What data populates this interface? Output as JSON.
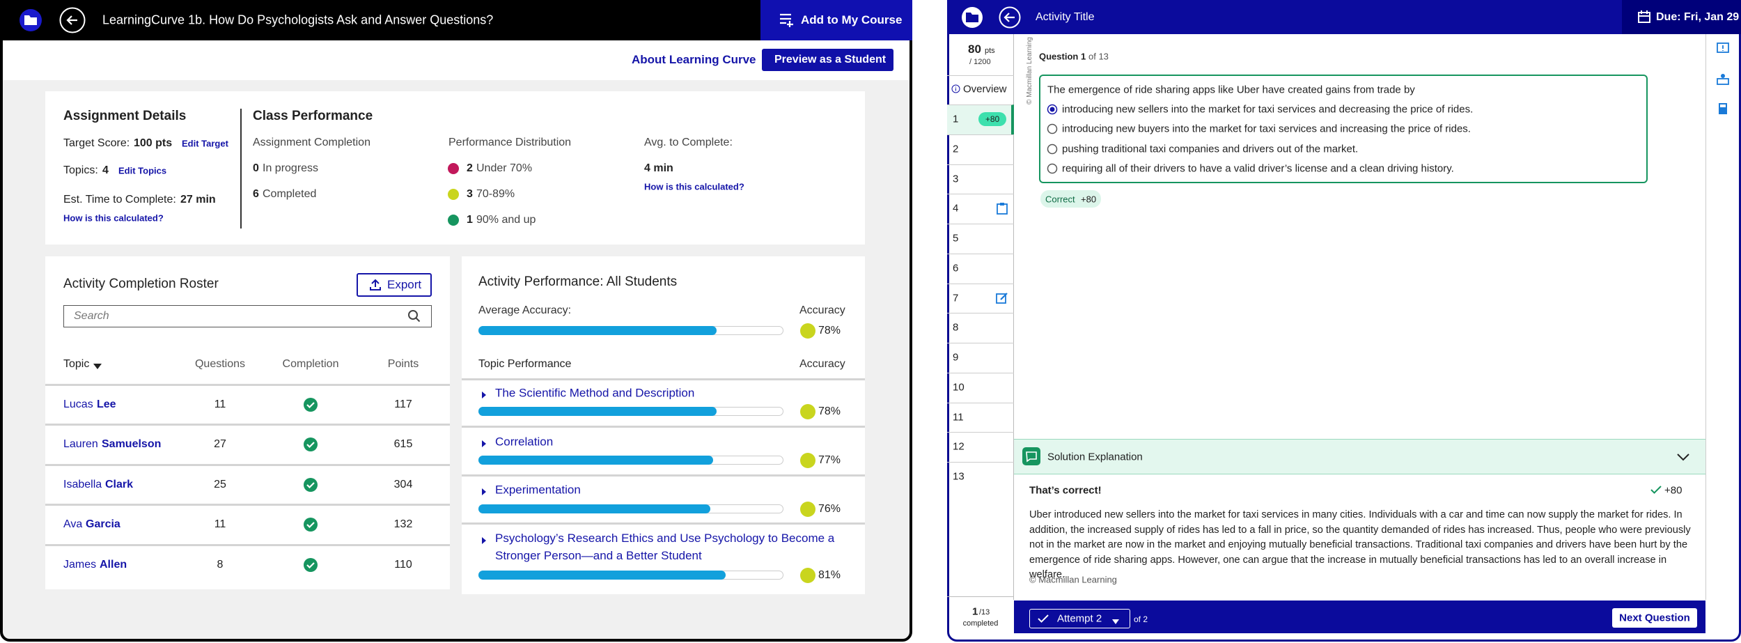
{
  "left": {
    "header": {
      "title": "LearningCurve 1b. How Do Psychologists Ask and Answer Questions?",
      "add_button": "Add to My Course"
    },
    "subnav": {
      "about": "About Learning Curve",
      "preview": "Preview as a Student"
    },
    "assignment_details": {
      "title": "Assignment Details",
      "target_label": "Target Score:",
      "target_value": "100 pts",
      "edit_target": "Edit Target",
      "topics_label": "Topics:",
      "topics_value": 4,
      "edit_topics": "Edit Topics",
      "time_label": "Est. Time to Complete:",
      "time_value": "27 min",
      "how": "How is this calculated?"
    },
    "class_performance": {
      "title": "Class Performance",
      "completion": {
        "title": "Assignment Completion",
        "items": [
          {
            "count": 0,
            "label": "In progress"
          },
          {
            "count": 6,
            "label": "Completed"
          }
        ]
      },
      "distribution": {
        "title": "Performance Distribution",
        "items": [
          {
            "count": 2,
            "label": "Under 70%",
            "color": "#c2185b"
          },
          {
            "count": 3,
            "label": "70-89%",
            "color": "#c9d51e"
          },
          {
            "count": 1,
            "label": "90% and up",
            "color": "#16955f"
          }
        ]
      },
      "avg": {
        "title": "Avg. to Complete:",
        "value": "4 min",
        "how": "How is this calculated?"
      }
    },
    "roster": {
      "title": "Activity Completion Roster",
      "export": "Export",
      "search_placeholder": "Search",
      "columns": [
        "Topic",
        "Questions",
        "Completion",
        "Points"
      ],
      "rows": [
        {
          "first": "Lucas",
          "last": "Lee",
          "questions": 11,
          "points": 117
        },
        {
          "first": "Lauren",
          "last": "Samuelson",
          "questions": 27,
          "points": 615
        },
        {
          "first": "Isabella",
          "last": "Clark",
          "questions": 25,
          "points": 304
        },
        {
          "first": "Ava",
          "last": "Garcia",
          "questions": 11,
          "points": 132
        },
        {
          "first": "James",
          "last": "Allen",
          "questions": 8,
          "points": 110
        }
      ]
    },
    "activity_performance": {
      "title": "Activity Performance: All Students",
      "average_label": "Average Accuracy:",
      "accuracy_header": "Accuracy",
      "average": {
        "value": 78,
        "label": "78%"
      },
      "topic_header": "Topic Performance",
      "topic_accuracy_header": "Accuracy",
      "topics": [
        {
          "name": "The Scientific Method and Description",
          "accuracy": {
            "value": 78,
            "label": "78%"
          }
        },
        {
          "name": "Correlation",
          "accuracy": {
            "value": 77,
            "label": "77%"
          }
        },
        {
          "name": "Experimentation",
          "accuracy": {
            "value": 76,
            "label": "76%"
          }
        },
        {
          "name": "Psychology’s Research Ethics and Use Psychology to Become a Stronger Person—and a Better Student",
          "accuracy": {
            "value": 81,
            "label": "81%"
          }
        }
      ]
    }
  },
  "right": {
    "header": {
      "title": "Activity Title",
      "due": "Due: Fri, Jan 29"
    },
    "sidebar": {
      "points": 80,
      "points_unit": "pts",
      "total": "/ 1200",
      "overview": "Overview",
      "questions": [
        1,
        2,
        3,
        4,
        5,
        6,
        7,
        8,
        9,
        10,
        11,
        12,
        13
      ],
      "badge": "+80",
      "completed": 1,
      "completed_of": "/13",
      "completed_label": "completed"
    },
    "question": {
      "label": "Question",
      "number": 1,
      "of": "of 13",
      "watermark": "© Macmillan Learning",
      "prompt": "The emergence of ride sharing apps like Uber have created gains from trade by",
      "options": [
        "introducing new sellers into the market for taxi services and decreasing the price of rides.",
        "introducing new buyers into the market for taxi services and increasing the price of rides.",
        "pushing traditional taxi companies and drivers out of the market.",
        "requiring all of their drivers to have a valid driver’s license and a clean driving history."
      ],
      "selected": 0
    },
    "correct": {
      "label": "Correct",
      "points": "+80"
    },
    "solution": {
      "title": "Solution Explanation",
      "verdict": "That’s correct!",
      "points": "+80",
      "text": "Uber introduced new sellers into the market for taxi services in many cities. Individuals with a car and time can now supply the market for rides. In addition, the increased supply of rides has led to a fall in price, so the quantity demanded of rides has increased. Thus, people who were previously not in the market are now in the market and enjoying mutually beneficial transactions. Traditional taxi companies and drivers have been hurt by the emergence of ride sharing apps. However, one can argue that the increase in mutually beneficial transactions has led to an overall increase in welfare.",
      "copyright": "© Macmillan Learning"
    },
    "footer": {
      "attempt": "Attempt 2",
      "of": "of 2",
      "next": "Next Question"
    }
  }
}
